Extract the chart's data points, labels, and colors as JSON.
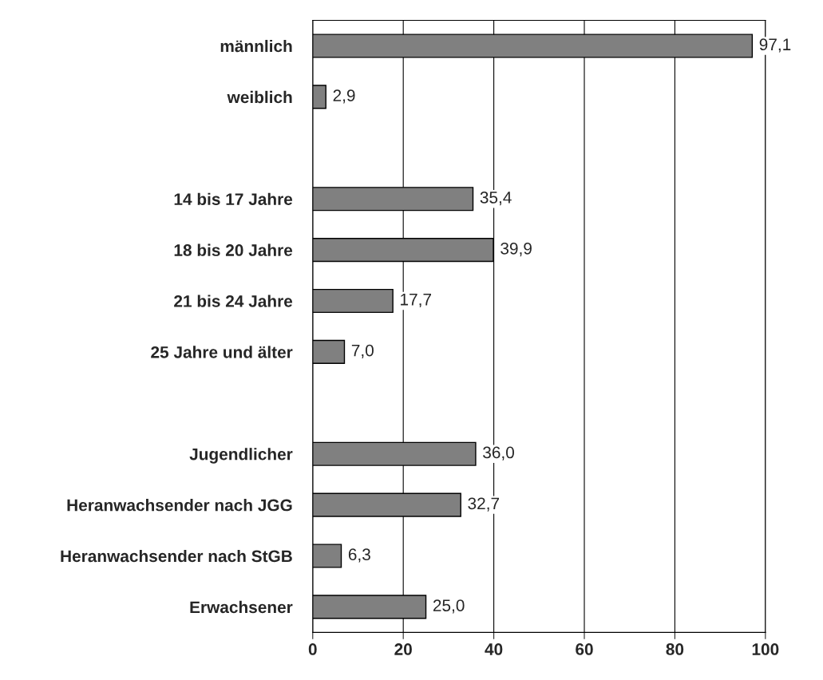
{
  "chart_data": {
    "type": "bar",
    "orientation": "horizontal",
    "categories": [
      "männlich",
      "weiblich",
      null,
      "14 bis 17 Jahre",
      "18 bis 20 Jahre",
      "21 bis 24 Jahre",
      "25 Jahre und älter",
      null,
      "Jugendlicher",
      "Heranwachsender nach JGG",
      "Heranwachsender nach StGB",
      "Erwachsener"
    ],
    "values": [
      97.1,
      2.9,
      null,
      35.4,
      39.9,
      17.7,
      7.0,
      null,
      36.0,
      32.7,
      6.3,
      25.0
    ],
    "value_labels": [
      "97,1",
      "2,9",
      null,
      "35,4",
      "39,9",
      "17,7",
      "7,0",
      null,
      "36,0",
      "32,7",
      "6,3",
      "25,0"
    ],
    "color": "#808080",
    "xlim": [
      0,
      100
    ],
    "xticks": [
      0,
      20,
      40,
      60,
      80,
      100
    ],
    "grid": "x",
    "legend": false
  }
}
